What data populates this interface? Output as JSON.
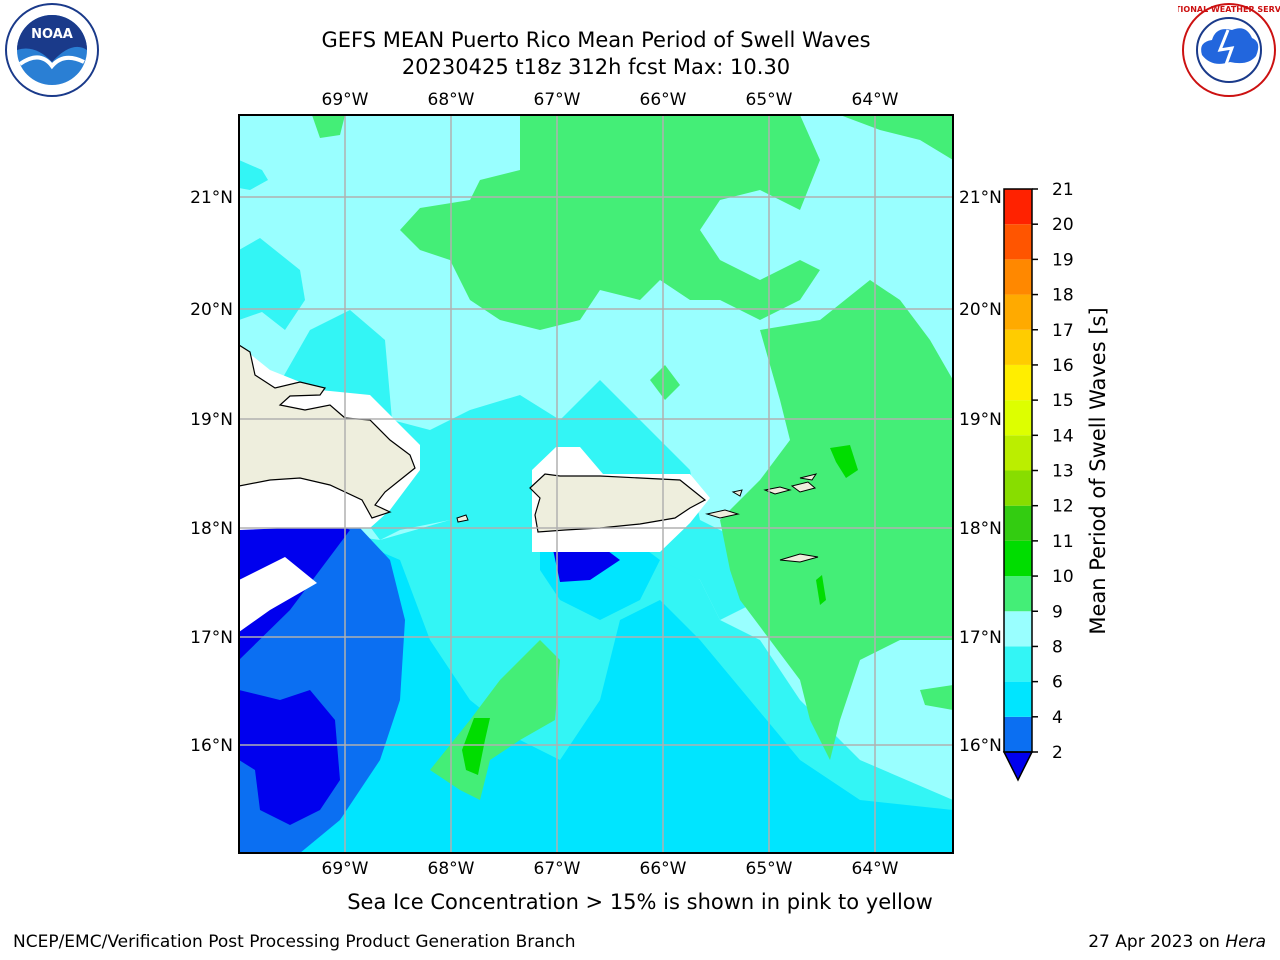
{
  "title": {
    "line1": "GEFS MEAN Puerto Rico Mean Period of Swell Waves",
    "line2": "20230425 t18z 312h fcst   Max: 10.30"
  },
  "map": {
    "longitudes": [
      "69°W",
      "68°W",
      "67°W",
      "66°W",
      "65°W",
      "64°W"
    ],
    "latitudes": [
      "21°N",
      "20°N",
      "19°N",
      "18°N",
      "17°N",
      "16°N"
    ]
  },
  "colorbar": {
    "label": "Mean Period of Swell Waves [s]",
    "ticks": [
      "2",
      "4",
      "6",
      "8",
      "9",
      "10",
      "11",
      "12",
      "13",
      "14",
      "15",
      "16",
      "17",
      "18",
      "19",
      "20",
      "21"
    ],
    "colors": [
      "#0b6ff2",
      "#00e5ff",
      "#33f5f5",
      "#99ffff",
      "#44ee77",
      "#00dd00",
      "#33cc11",
      "#88dd00",
      "#bbee00",
      "#ddff00",
      "#ffee00",
      "#ffcc00",
      "#ffaa00",
      "#ff8800",
      "#ff5500",
      "#ff2200",
      "#ff0000"
    ],
    "underflow_color": "#0000ee"
  },
  "caption": "Sea Ice Concentration > 15% is shown in pink to yellow",
  "footer": {
    "left": "NCEP/EMC/Verification Post Processing Product Generation Branch",
    "date": "27 Apr 2023 on ",
    "machine": "Hera"
  },
  "logos": {
    "left": "NOAA",
    "right": "NATIONAL WEATHER SERVICE"
  },
  "colors": {
    "land": "#eeeedd",
    "grid": "#b0b0b0",
    "swell_9_10": "#44ee77",
    "swell_8_9": "#99ffff",
    "swell_6_8": "#33f5f5",
    "swell_4_6": "#00e5ff",
    "swell_2_4": "#0b6ff2",
    "swell_under_2": "#0000ee"
  }
}
